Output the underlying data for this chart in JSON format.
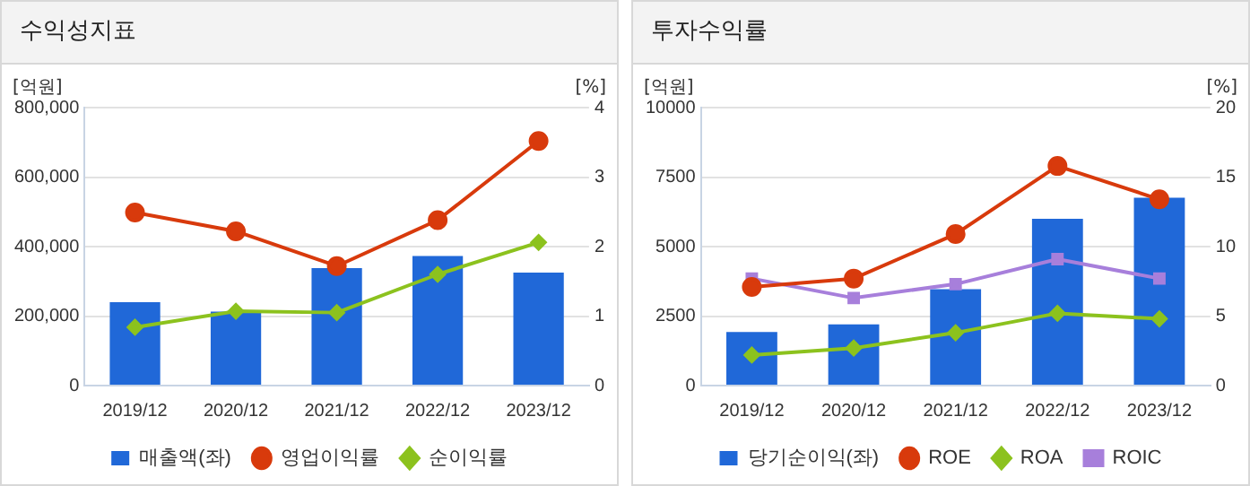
{
  "chart_data": [
    {
      "type": "bar",
      "title": "수익성지표",
      "ylabel": "[억원]",
      "y2label": "[%]",
      "categories": [
        "2019/12",
        "2020/12",
        "2021/12",
        "2022/12",
        "2023/12"
      ],
      "ylim": [
        0,
        800000
      ],
      "yticks": [
        0,
        {
          "value": 200000,
          "label": "200,000"
        },
        {
          "value": 400000,
          "label": "400,000"
        },
        {
          "value": 600000,
          "label": "600,000"
        },
        {
          "value": 800000,
          "label": "800,000"
        }
      ],
      "y2lim": [
        0,
        4
      ],
      "y2ticks": [
        0,
        1,
        2,
        3,
        4
      ],
      "grid": "y",
      "legend": "bottom",
      "series": [
        {
          "name": "매출액(좌)",
          "color": "#2068d8",
          "values": [
            240000,
            213000,
            338000,
            373000,
            325000
          ]
        },
        {
          "name": "영업이익률",
          "type": "line",
          "axis": "y2",
          "marker": "circle",
          "color": "#d83a0c",
          "values": [
            2.49,
            2.22,
            1.72,
            2.38,
            3.52
          ]
        },
        {
          "name": "순이익률",
          "type": "line",
          "axis": "y2",
          "marker": "diamond",
          "color": "#8cc21e",
          "values": [
            0.84,
            1.07,
            1.05,
            1.6,
            2.06
          ]
        }
      ]
    },
    {
      "type": "bar",
      "title": "투자수익률",
      "ylabel": "[억원]",
      "y2label": "[%]",
      "categories": [
        "2019/12",
        "2020/12",
        "2021/12",
        "2022/12",
        "2023/12"
      ],
      "ylim": [
        0,
        10000
      ],
      "yticks": [
        0,
        2500,
        5000,
        7500,
        10000
      ],
      "y2lim": [
        0,
        20
      ],
      "y2ticks": [
        0,
        5,
        10,
        15,
        20
      ],
      "grid": "y",
      "legend": "bottom",
      "series": [
        {
          "name": "당기순이익(좌)",
          "color": "#2068d8",
          "values": [
            1930,
            2200,
            3470,
            6000,
            6760
          ]
        },
        {
          "name": "ROE",
          "type": "line",
          "axis": "y2",
          "marker": "circle",
          "color": "#d83a0c",
          "values": [
            7.1,
            7.7,
            10.9,
            15.8,
            13.4
          ]
        },
        {
          "name": "ROA",
          "type": "line",
          "axis": "y2",
          "marker": "diamond",
          "color": "#8cc21e",
          "values": [
            2.2,
            2.7,
            3.8,
            5.2,
            4.8
          ]
        },
        {
          "name": "ROIC",
          "type": "line",
          "axis": "y2",
          "marker": "square",
          "color": "#a77fdb",
          "values": [
            7.7,
            6.3,
            7.3,
            9.1,
            7.7
          ]
        }
      ]
    }
  ]
}
